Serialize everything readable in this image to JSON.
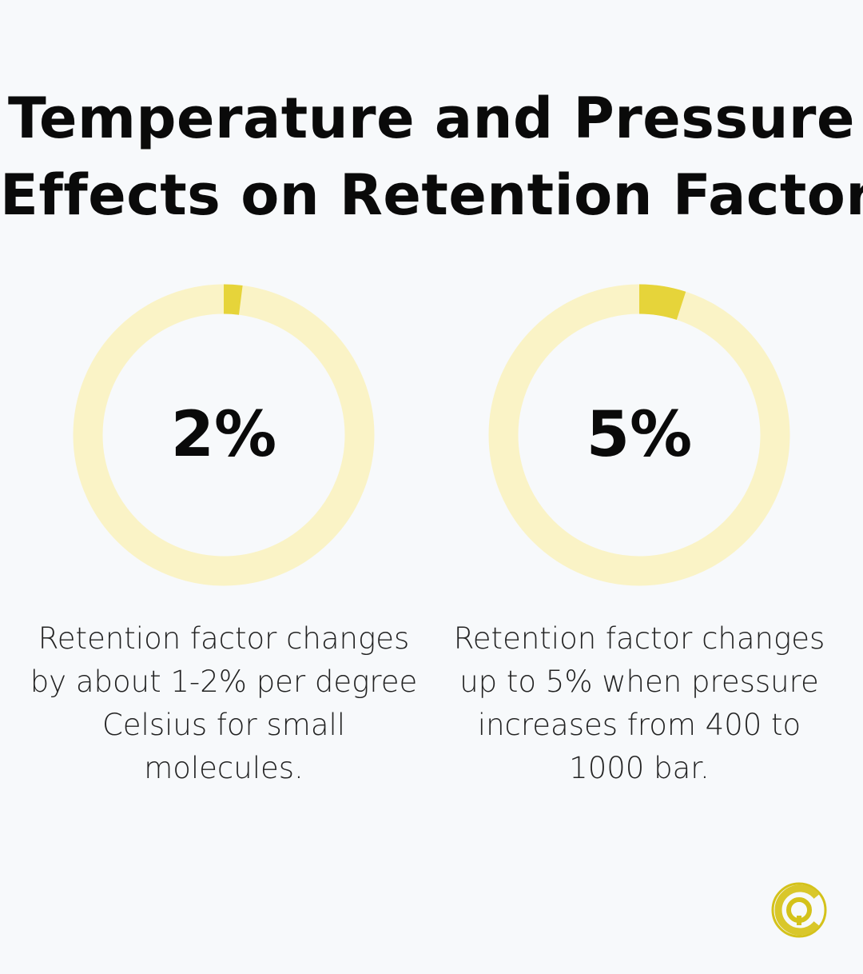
{
  "title": {
    "line1": "Temperature and Pressure",
    "line2": "Effects on Retention Factor"
  },
  "colors": {
    "background": "#f7f9fb",
    "track": "#faf3c6",
    "fill": "#e6d43a",
    "logo": "#d4c21a"
  },
  "chart_data": [
    {
      "type": "pie",
      "variant": "donut",
      "value": 2,
      "max": 100,
      "label": "2%",
      "description": "Retention factor changes by about 1-2% per degree Celsius for small molecules."
    },
    {
      "type": "pie",
      "variant": "donut",
      "value": 5,
      "max": 100,
      "label": "5%",
      "description": "Retention factor changes up to 5% when pressure increases from 400 to 1000 bar."
    }
  ],
  "logo": {
    "icon": "cq-logo-icon"
  }
}
